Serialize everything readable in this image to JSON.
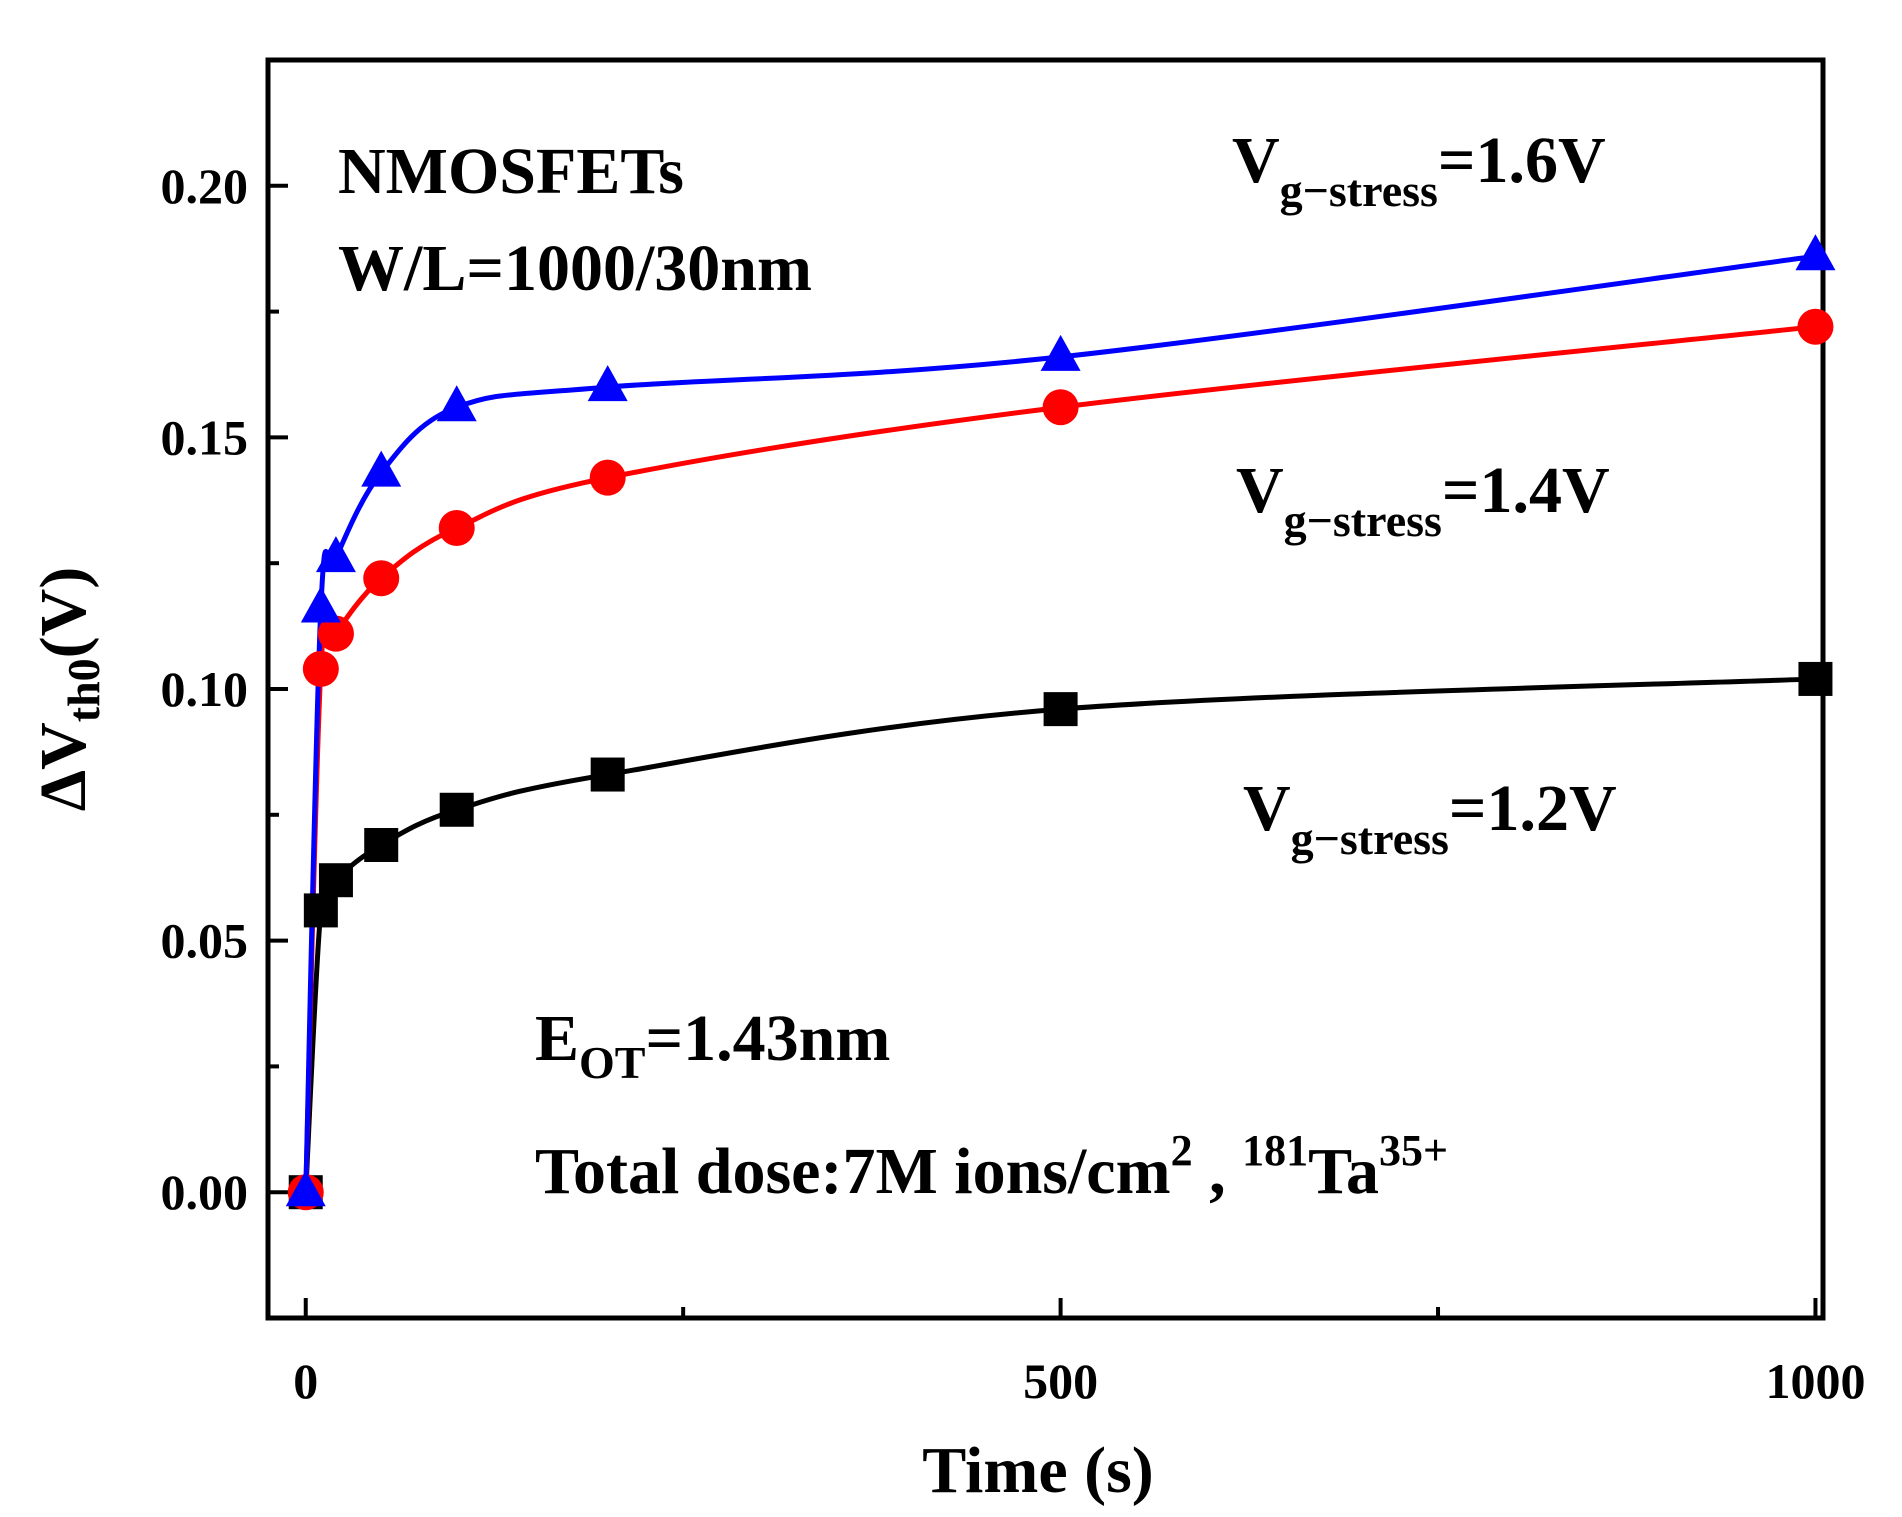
{
  "chart_data": {
    "type": "line",
    "xlabel": "Time (s)",
    "ylabel": {
      "main": "ΔV",
      "sub": "th0",
      "unit": "(V)"
    },
    "xlim": [
      -25,
      1005
    ],
    "ylim": [
      -0.025,
      0.225
    ],
    "x_ticks": [
      0,
      500,
      1000
    ],
    "x_tick_labels": [
      "0",
      "500",
      "1000"
    ],
    "y_ticks": [
      0.0,
      0.05,
      0.1,
      0.15,
      0.2
    ],
    "y_tick_labels": [
      "0.00",
      "0.05",
      "0.10",
      "0.15",
      "0.20"
    ],
    "grid": false,
    "series": [
      {
        "name": "Vg-stress=1.2V",
        "color": "#000000",
        "marker": "square",
        "x": [
          0,
          10,
          20,
          50,
          100,
          200,
          500,
          1000
        ],
        "y": [
          0.0,
          0.056,
          0.062,
          0.069,
          0.076,
          0.083,
          0.096,
          0.102
        ]
      },
      {
        "name": "Vg-stress=1.4V",
        "color": "#ff0000",
        "marker": "circle",
        "x": [
          0,
          10,
          20,
          50,
          100,
          200,
          500,
          1000
        ],
        "y": [
          0.0,
          0.104,
          0.111,
          0.122,
          0.132,
          0.142,
          0.156,
          0.172
        ]
      },
      {
        "name": "Vg-stress=1.6V",
        "color": "#0000ff",
        "marker": "triangle",
        "x": [
          0,
          10,
          20,
          50,
          100,
          200,
          500,
          1000
        ],
        "y": [
          0.0,
          0.116,
          0.126,
          0.143,
          0.156,
          0.16,
          0.166,
          0.186
        ]
      }
    ],
    "annotations": {
      "device": "NMOSFETs",
      "size": "W/L=1000/30nm",
      "label_v": "V",
      "label_sub": "g−stress",
      "label_16": "=1.6V",
      "label_14": "=1.4V",
      "label_12": "=1.2V",
      "eot_main": "E",
      "eot_sub": "OT",
      "eot_value": "=1.43nm",
      "dose_text": "Total dose:7M ions/cm",
      "dose_sup": "2",
      "dose_sep": " , ",
      "ion_mass": "181",
      "ion_symbol": "Ta",
      "ion_charge": "35+"
    }
  }
}
